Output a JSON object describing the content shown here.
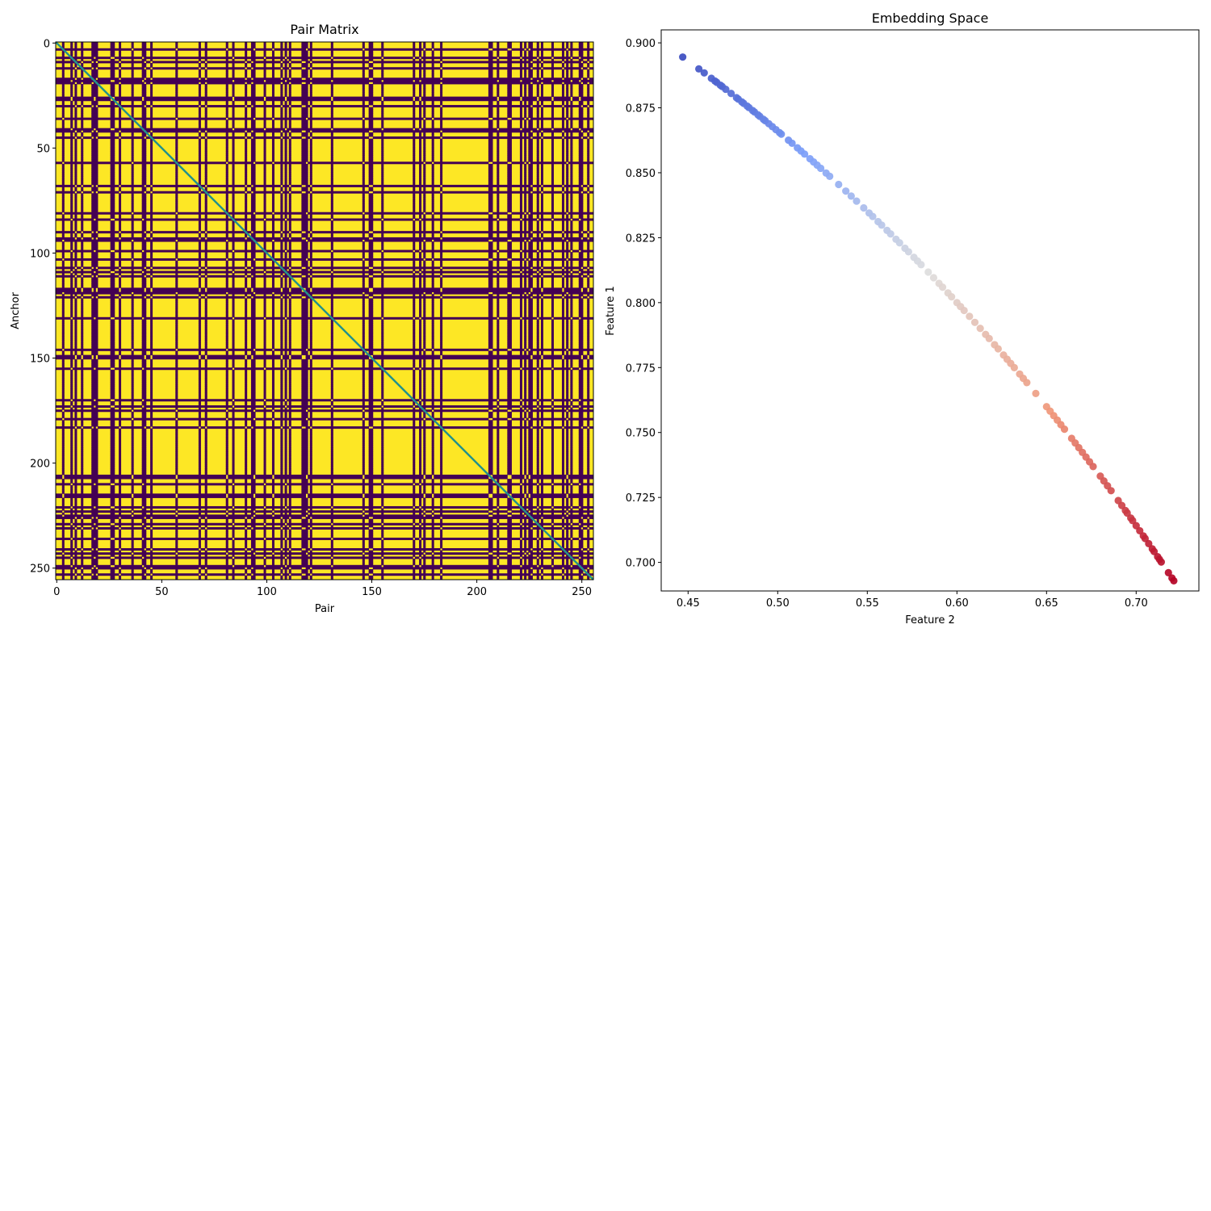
{
  "chart_data": [
    {
      "type": "heatmap",
      "title": "Pair Matrix",
      "xlabel": "Pair",
      "ylabel": "Anchor",
      "size": 256,
      "xlim": [
        0,
        256
      ],
      "ylim": [
        256,
        0
      ],
      "xticks": [
        0,
        50,
        100,
        150,
        200,
        250
      ],
      "yticks": [
        0,
        50,
        100,
        150,
        200,
        250
      ],
      "colormap": "viridis",
      "values_binary": true,
      "diagonal_value": 0.5,
      "colors": {
        "low": "#440154",
        "mid": "#21918c",
        "high": "#fde725"
      },
      "note_lines": "Binary 256x256 matrix; each index belongs to one of several clusters; cell=1 (yellow) when anchor and pair share a cluster, 0 (purple) otherwise; diagonal drawn in teal."
    },
    {
      "type": "scatter",
      "title": "Embedding Space",
      "xlabel": "Feature 2",
      "ylabel": "Feature 1",
      "xlim": [
        0.435,
        0.735
      ],
      "ylim": [
        0.689,
        0.905
      ],
      "xticks": [
        0.45,
        0.5,
        0.55,
        0.6,
        0.65,
        0.7
      ],
      "yticks": [
        0.7,
        0.725,
        0.75,
        0.775,
        0.8,
        0.825,
        0.85,
        0.875,
        0.9
      ],
      "xtick_labels": [
        "0.45",
        "0.50",
        "0.55",
        "0.60",
        "0.65",
        "0.70"
      ],
      "ytick_labels": [
        "0.700",
        "0.725",
        "0.750",
        "0.775",
        "0.800",
        "0.825",
        "0.850",
        "0.875",
        "0.900"
      ],
      "colormap": "coolwarm",
      "curve": "points lie on the unit circle: y = sqrt(1 - x^2)",
      "x_points": [
        0.447,
        0.456,
        0.459,
        0.463,
        0.465,
        0.466,
        0.468,
        0.469,
        0.471,
        0.474,
        0.477,
        0.478,
        0.48,
        0.481,
        0.483,
        0.484,
        0.486,
        0.487,
        0.489,
        0.49,
        0.492,
        0.493,
        0.495,
        0.497,
        0.499,
        0.501,
        0.502,
        0.506,
        0.508,
        0.511,
        0.513,
        0.515,
        0.518,
        0.52,
        0.522,
        0.524,
        0.527,
        0.529,
        0.534,
        0.538,
        0.541,
        0.544,
        0.548,
        0.551,
        0.553,
        0.556,
        0.558,
        0.561,
        0.563,
        0.566,
        0.568,
        0.571,
        0.573,
        0.576,
        0.578,
        0.58,
        0.584,
        0.587,
        0.59,
        0.592,
        0.595,
        0.597,
        0.6,
        0.602,
        0.604,
        0.607,
        0.61,
        0.613,
        0.616,
        0.618,
        0.621,
        0.623,
        0.626,
        0.628,
        0.63,
        0.632,
        0.635,
        0.637,
        0.639,
        0.644,
        0.65,
        0.652,
        0.654,
        0.656,
        0.658,
        0.66,
        0.664,
        0.666,
        0.668,
        0.67,
        0.672,
        0.674,
        0.676,
        0.68,
        0.682,
        0.684,
        0.686,
        0.69,
        0.692,
        0.694,
        0.695,
        0.697,
        0.698,
        0.7,
        0.702,
        0.704,
        0.705,
        0.707,
        0.709,
        0.71,
        0.712,
        0.713,
        0.714,
        0.718,
        0.72,
        0.721
      ]
    }
  ]
}
